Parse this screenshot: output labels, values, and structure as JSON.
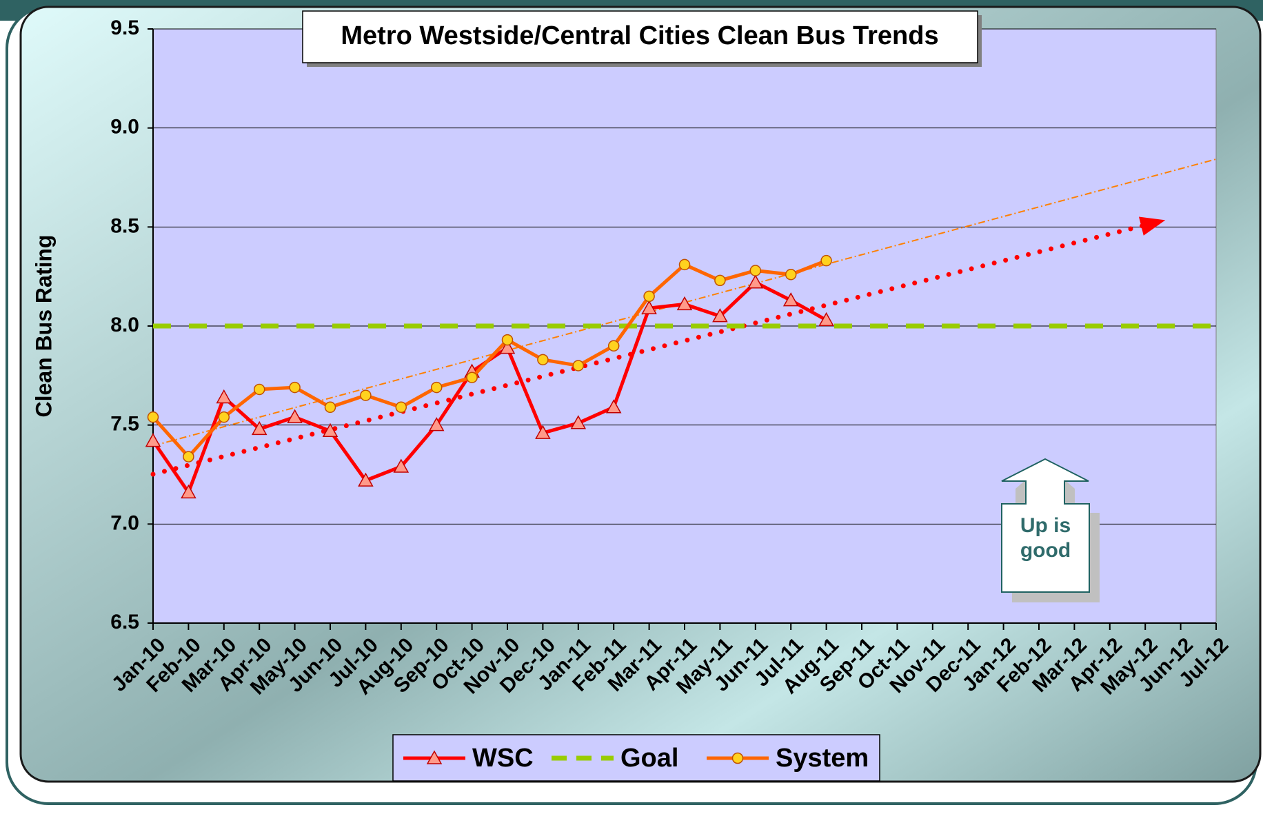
{
  "chart_data": {
    "type": "line",
    "title": "Metro Westside/Central Cities Clean Bus Trends",
    "y_label": "Clean Bus Rating",
    "annotation": "Up is good",
    "categories": [
      "Jan-10",
      "Feb-10",
      "Mar-10",
      "Apr-10",
      "May-10",
      "Jun-10",
      "Jul-10",
      "Aug-10",
      "Sep-10",
      "Oct-10",
      "Nov-10",
      "Dec-10",
      "Jan-11",
      "Feb-11",
      "Mar-11",
      "Apr-11",
      "May-11",
      "Jun-11",
      "Jul-11",
      "Aug-11",
      "Sep-11",
      "Oct-11",
      "Nov-11",
      "Dec-11",
      "Jan-12",
      "Feb-12",
      "Mar-12",
      "Apr-12",
      "May-12",
      "Jun-12",
      "Jul-12"
    ],
    "series": [
      {
        "name": "WSC",
        "color": "#ff0000",
        "values": [
          7.42,
          7.16,
          7.64,
          7.48,
          7.54,
          7.47,
          7.22,
          7.29,
          7.5,
          7.77,
          7.89,
          7.46,
          7.51,
          7.59,
          8.09,
          8.11,
          8.05,
          8.22,
          8.13,
          8.03,
          null,
          null,
          null,
          null,
          null,
          null,
          null,
          null,
          null,
          null,
          null
        ]
      },
      {
        "name": "Goal",
        "color": "#99cc00",
        "values": [
          8,
          8,
          8,
          8,
          8,
          8,
          8,
          8,
          8,
          8,
          8,
          8,
          8,
          8,
          8,
          8,
          8,
          8,
          8,
          8,
          8,
          8,
          8,
          8,
          8,
          8,
          8,
          8,
          8,
          8,
          8
        ]
      },
      {
        "name": "System",
        "color": "#ff6600",
        "values": [
          7.54,
          7.34,
          7.54,
          7.68,
          7.69,
          7.59,
          7.65,
          7.59,
          7.69,
          7.74,
          7.93,
          7.83,
          7.8,
          7.9,
          8.15,
          8.31,
          8.23,
          8.28,
          8.26,
          8.33,
          null,
          null,
          null,
          null,
          null,
          null,
          null,
          null,
          null,
          null,
          null
        ]
      }
    ],
    "ylim": [
      6.5,
      9.5
    ],
    "yticks": [
      6.5,
      {
        "value": 7,
        "label": "7.0"
      },
      7.5,
      {
        "value": 8,
        "label": "8.0"
      },
      8.5,
      {
        "value": 9,
        "label": "9.0"
      },
      9.5
    ],
    "grid": true,
    "legend": "bottom"
  }
}
